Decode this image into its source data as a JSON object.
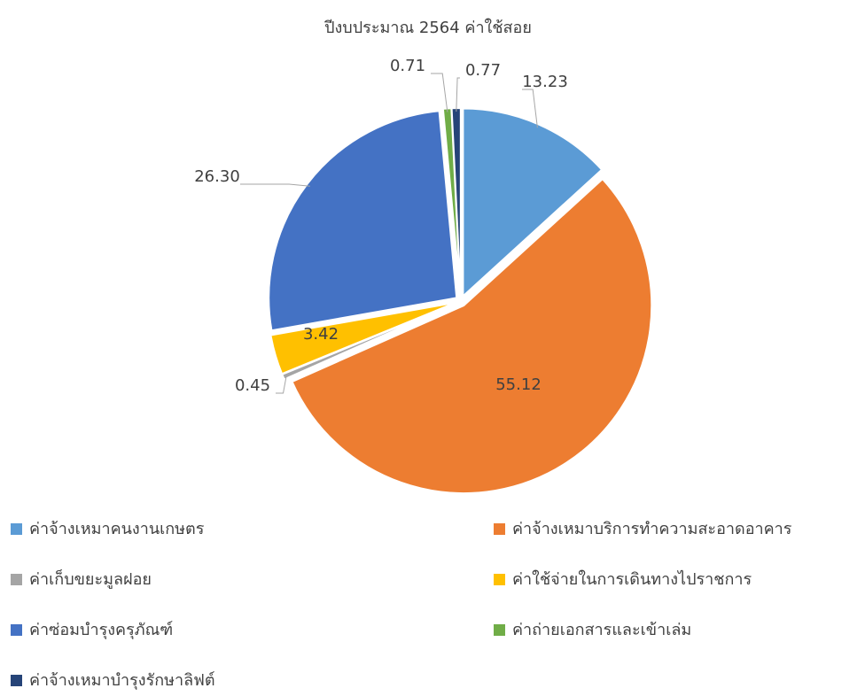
{
  "chart_data": {
    "type": "pie",
    "title": "ปีงบประมาณ 2564 ค่าใช้สอย",
    "categories": [
      "ค่าจ้างเหมาคนงานเกษตร",
      "ค่าจ้างเหมาบริการทำความสะอาดอาคาร",
      "ค่าเก็บขยะมูลฝอย",
      "ค่าใช้จ่ายในการเดินทางไปราชการ",
      "ค่าซ่อมบำรุงครุภัณฑ์",
      "ค่าถ่ายเอกสารและเข้าเล่ม",
      "ค่าจ้างเหมาบำรุงรักษาลิฟต์"
    ],
    "values": [
      13.23,
      55.12,
      0.45,
      3.42,
      26.3,
      0.71,
      0.77
    ],
    "value_labels": [
      "13.23",
      "55.12",
      "0.45",
      "3.42",
      "26.30",
      "0.71",
      "0.77"
    ],
    "colors": [
      "#5b9bd5",
      "#ed7d31",
      "#a5a5a5",
      "#ffc000",
      "#4472c4",
      "#70ad47",
      "#264478"
    ],
    "legend": "bottom"
  }
}
